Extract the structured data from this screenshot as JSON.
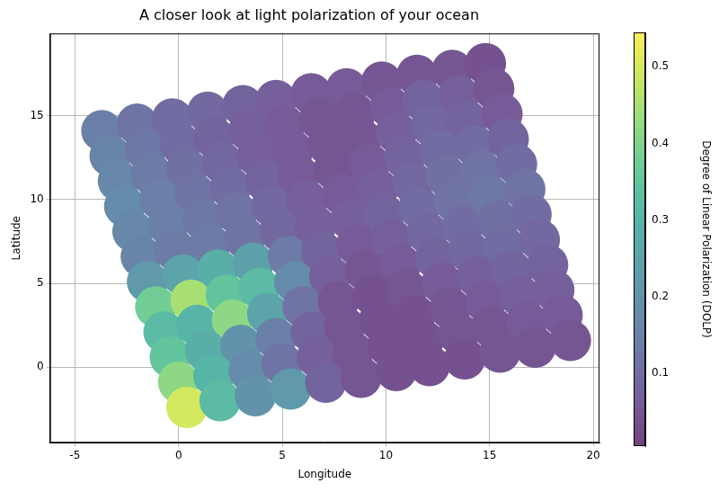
{
  "chart_data": {
    "type": "scatter",
    "title": "A closer look at light polarization of your ocean",
    "x_label": "Longitude",
    "y_label": "Latitude",
    "x": [
      -3.7,
      -2.0,
      -0.3,
      1.4,
      3.1,
      4.7,
      6.4,
      8.1,
      9.8,
      11.5,
      13.2,
      14.8,
      -3.3,
      -1.6,
      0.1,
      1.7,
      3.4,
      5.1,
      6.8,
      8.5,
      10.2,
      11.8,
      13.5,
      15.2,
      -2.9,
      -1.3,
      0.4,
      2.1,
      3.8,
      5.5,
      7.2,
      8.8,
      10.5,
      12.2,
      13.9,
      15.6,
      -2.6,
      -0.9,
      0.8,
      2.5,
      4.2,
      5.8,
      7.5,
      9.2,
      10.9,
      12.6,
      14.3,
      15.9,
      -2.2,
      -0.5,
      1.2,
      2.8,
      4.5,
      6.2,
      7.9,
      9.6,
      11.3,
      12.9,
      14.6,
      16.3,
      -1.8,
      -0.2,
      1.5,
      3.2,
      4.9,
      6.6,
      8.3,
      9.9,
      11.6,
      13.3,
      15.0,
      16.7,
      -1.5,
      0.2,
      1.9,
      3.6,
      5.3,
      6.9,
      8.6,
      10.3,
      12.0,
      13.7,
      15.4,
      17.0,
      -1.1,
      0.6,
      2.3,
      3.9,
      5.6,
      7.3,
      9.0,
      10.7,
      12.4,
      14.0,
      15.7,
      17.4,
      -0.7,
      0.9,
      2.6,
      4.3,
      6.0,
      7.7,
      9.4,
      11.0,
      12.7,
      14.4,
      16.1,
      17.8,
      -0.4,
      1.3,
      3.0,
      4.7,
      6.4,
      8.0,
      9.7,
      11.4,
      13.1,
      14.8,
      16.5,
      18.1,
      0.0,
      1.7,
      3.4,
      5.0,
      6.7,
      8.4,
      10.1,
      11.8,
      13.5,
      15.1,
      16.8,
      18.5,
      0.4,
      2.0,
      3.7,
      5.4,
      7.1,
      8.8,
      10.5,
      12.1,
      13.8,
      15.5,
      17.2,
      18.9
    ],
    "y": [
      14.1,
      14.5,
      14.8,
      15.2,
      15.6,
      15.9,
      16.3,
      16.6,
      17.0,
      17.4,
      17.7,
      18.1,
      12.6,
      13.0,
      13.3,
      13.7,
      14.1,
      14.4,
      14.8,
      15.1,
      15.5,
      15.9,
      16.2,
      16.6,
      11.1,
      11.5,
      11.8,
      12.2,
      12.6,
      12.9,
      13.3,
      13.6,
      14.0,
      14.4,
      14.7,
      15.1,
      9.6,
      10.0,
      10.3,
      10.7,
      11.1,
      11.4,
      11.8,
      12.1,
      12.5,
      12.9,
      13.2,
      13.6,
      8.1,
      8.5,
      8.8,
      9.2,
      9.6,
      9.9,
      10.3,
      10.6,
      11.0,
      11.4,
      11.7,
      12.1,
      6.6,
      7.0,
      7.3,
      7.7,
      8.1,
      8.4,
      8.8,
      9.1,
      9.5,
      9.9,
      10.2,
      10.6,
      5.1,
      5.5,
      5.8,
      6.2,
      6.6,
      6.9,
      7.3,
      7.6,
      8.0,
      8.4,
      8.7,
      9.1,
      3.6,
      4.0,
      4.3,
      4.7,
      5.1,
      5.4,
      5.8,
      6.1,
      6.5,
      6.9,
      7.2,
      7.6,
      2.1,
      2.5,
      2.8,
      3.2,
      3.6,
      3.9,
      4.3,
      4.6,
      5.0,
      5.4,
      5.7,
      6.1,
      0.6,
      1.0,
      1.3,
      1.7,
      2.1,
      2.4,
      2.8,
      3.1,
      3.5,
      3.9,
      4.2,
      4.6,
      -0.9,
      -0.5,
      -0.2,
      0.2,
      0.6,
      0.9,
      1.3,
      1.6,
      2.0,
      2.4,
      2.7,
      3.1,
      -2.4,
      -2.0,
      -1.7,
      -1.3,
      -0.9,
      -0.6,
      -0.2,
      0.1,
      0.5,
      0.9,
      1.2,
      1.6
    ],
    "values": [
      0.15,
      0.12,
      0.1,
      0.09,
      0.08,
      0.07,
      0.06,
      0.06,
      0.05,
      0.05,
      0.05,
      0.04,
      0.16,
      0.13,
      0.1,
      0.08,
      0.07,
      0.06,
      0.05,
      0.05,
      0.06,
      0.08,
      0.07,
      0.05,
      0.17,
      0.14,
      0.11,
      0.09,
      0.07,
      0.06,
      0.05,
      0.05,
      0.07,
      0.09,
      0.08,
      0.06,
      0.18,
      0.15,
      0.12,
      0.1,
      0.08,
      0.06,
      0.05,
      0.06,
      0.08,
      0.1,
      0.1,
      0.08,
      0.17,
      0.15,
      0.13,
      0.12,
      0.09,
      0.07,
      0.06,
      0.07,
      0.09,
      0.11,
      0.12,
      0.1,
      0.16,
      0.14,
      0.14,
      0.12,
      0.09,
      0.07,
      0.07,
      0.08,
      0.1,
      0.12,
      0.13,
      0.12,
      0.22,
      0.25,
      0.28,
      0.24,
      0.14,
      0.08,
      0.06,
      0.07,
      0.09,
      0.1,
      0.11,
      0.1,
      0.38,
      0.45,
      0.35,
      0.32,
      0.18,
      0.07,
      0.05,
      0.06,
      0.08,
      0.09,
      0.1,
      0.09,
      0.32,
      0.3,
      0.42,
      0.25,
      0.12,
      0.05,
      0.04,
      0.05,
      0.06,
      0.07,
      0.08,
      0.08,
      0.35,
      0.28,
      0.2,
      0.15,
      0.08,
      0.05,
      0.04,
      0.04,
      0.05,
      0.06,
      0.07,
      0.07,
      0.42,
      0.3,
      0.18,
      0.12,
      0.07,
      0.05,
      0.04,
      0.04,
      0.05,
      0.05,
      0.06,
      0.06,
      0.5,
      0.32,
      0.2,
      0.22,
      0.08,
      0.05,
      0.04,
      0.04,
      0.04,
      0.05,
      0.05,
      0.05
    ],
    "xlim": [
      -6.2,
      20.3
    ],
    "xticks": [
      -5,
      0,
      5,
      10,
      15,
      20
    ],
    "ylim": [
      -4.5,
      19.9
    ],
    "yticks": [
      0,
      5,
      10,
      15
    ],
    "grid": true,
    "colorbar": {
      "label": "Degree of Linear Polarization (DOLP)",
      "range": [
        0.005,
        0.545
      ],
      "ticks": [
        0.1,
        0.2,
        0.3,
        0.4,
        0.5
      ]
    }
  }
}
